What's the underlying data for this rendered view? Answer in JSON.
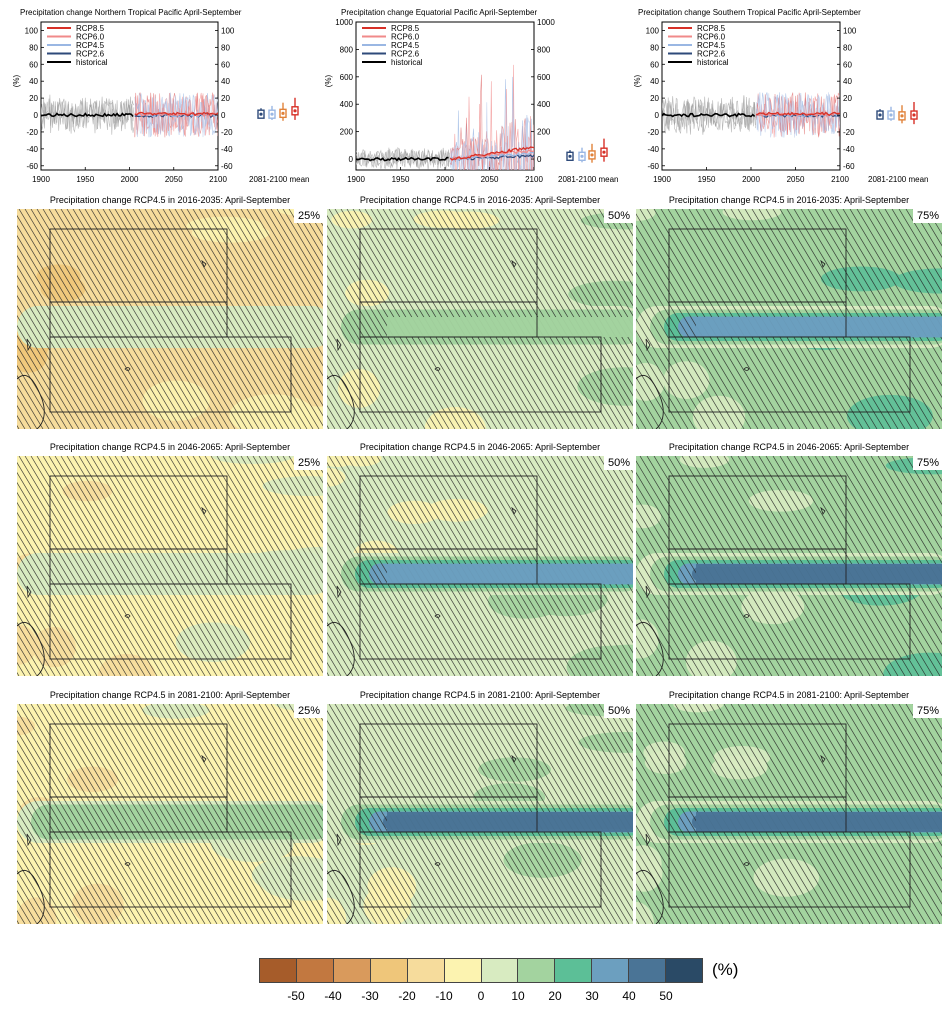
{
  "legend_labels": [
    "RCP8.5",
    "RCP6.0",
    "RCP4.5",
    "RCP2.6",
    "historical"
  ],
  "legend_colors": [
    "#d73027",
    "#f08a8a",
    "#9ab7e3",
    "#2e4a7a",
    "#000000"
  ],
  "timeseries_panels": [
    {
      "title": "Precipitation change Northern Tropical Pacific April-September",
      "y_unit": "(%)",
      "y_ticks": [
        "100",
        "80",
        "60",
        "40",
        "20",
        "0",
        "-20",
        "-40",
        "-60"
      ],
      "x_ticks": [
        "1900",
        "1950",
        "2000",
        "2050",
        "2100"
      ],
      "mean_label": "2081-2100 mean"
    },
    {
      "title": "Precipitation change Equatorial Pacific April-September",
      "y_unit": "(%)",
      "y_ticks": [
        "1000",
        "800",
        "600",
        "400",
        "200",
        "0"
      ],
      "x_ticks": [
        "1900",
        "1950",
        "2000",
        "2050",
        "2100"
      ],
      "mean_label": "2081-2100 mean"
    },
    {
      "title": "Precipitation change Southern Tropical Pacific April-September",
      "y_unit": "(%)",
      "y_ticks": [
        "100",
        "80",
        "60",
        "40",
        "20",
        "0",
        "-20",
        "-40",
        "-60"
      ],
      "x_ticks": [
        "1900",
        "1950",
        "2000",
        "2050",
        "2100"
      ],
      "mean_label": "2081-2100 mean"
    }
  ],
  "map_panels": [
    {
      "title": "Precipitation change RCP4.5 in 2016-2035: April-September",
      "percentile": "25%"
    },
    {
      "title": "Precipitation change RCP4.5 in 2016-2035: April-September",
      "percentile": "50%"
    },
    {
      "title": "Precipitation change RCP4.5 in 2016-2035: April-September",
      "percentile": "75%"
    },
    {
      "title": "Precipitation change RCP4.5 in 2046-2065: April-September",
      "percentile": "25%"
    },
    {
      "title": "Precipitation change RCP4.5 in 2046-2065: April-September",
      "percentile": "50%"
    },
    {
      "title": "Precipitation change RCP4.5 in 2046-2065: April-September",
      "percentile": "75%"
    },
    {
      "title": "Precipitation change RCP4.5 in 2081-2100: April-September",
      "percentile": "25%"
    },
    {
      "title": "Precipitation change RCP4.5 in 2081-2100: April-September",
      "percentile": "50%"
    },
    {
      "title": "Precipitation change RCP4.5 in 2081-2100: April-September",
      "percentile": "75%"
    }
  ],
  "colorbar": {
    "unit": "(%)",
    "colors": [
      "#a65c2a",
      "#c27840",
      "#d99a5c",
      "#efc67a",
      "#f6dc9c",
      "#fcf3b0",
      "#d8ebc1",
      "#a3d39f",
      "#5cbf97",
      "#6c9fbf",
      "#4a7496",
      "#2a4a66"
    ],
    "tick_labels": [
      "-50",
      "-40",
      "-30",
      "-20",
      "-10",
      "0",
      "10",
      "20",
      "30",
      "40",
      "50"
    ]
  },
  "chart_data": [
    {
      "type": "line",
      "title": "Precipitation change Northern Tropical Pacific April-September",
      "ylabel": "(%)",
      "x_range": [
        1900,
        2100
      ],
      "ylim": [
        -65,
        110
      ],
      "series": [
        {
          "name": "historical"
        },
        {
          "name": "RCP2.6"
        },
        {
          "name": "RCP4.5"
        },
        {
          "name": "RCP6.0"
        },
        {
          "name": "RCP8.5"
        }
      ],
      "mean_2081_2100": {
        "RCP2.6": 1,
        "RCP4.5": 1,
        "RCP6.0": 2,
        "RCP8.5": 5
      }
    },
    {
      "type": "line",
      "title": "Precipitation change Equatorial Pacific April-September",
      "ylabel": "(%)",
      "x_range": [
        1900,
        2100
      ],
      "ylim": [
        -80,
        1000
      ],
      "series": [
        {
          "name": "historical"
        },
        {
          "name": "RCP2.6"
        },
        {
          "name": "RCP4.5"
        },
        {
          "name": "RCP6.0"
        },
        {
          "name": "RCP8.5"
        }
      ],
      "mean_2081_2100": {
        "RCP2.6": 20,
        "RCP4.5": 20,
        "RCP6.0": 30,
        "RCP8.5": 50
      }
    },
    {
      "type": "line",
      "title": "Precipitation change Southern Tropical Pacific April-September",
      "ylabel": "(%)",
      "x_range": [
        1900,
        2100
      ],
      "ylim": [
        -65,
        110
      ],
      "series": [
        {
          "name": "historical"
        },
        {
          "name": "RCP2.6"
        },
        {
          "name": "RCP4.5"
        },
        {
          "name": "RCP6.0"
        },
        {
          "name": "RCP8.5"
        }
      ],
      "mean_2081_2100": {
        "RCP2.6": 0,
        "RCP4.5": 0,
        "RCP6.0": -1,
        "RCP8.5": 0
      }
    },
    {
      "type": "heatmap",
      "colorbar_ticks": [
        -50,
        -40,
        -30,
        -20,
        -10,
        0,
        10,
        20,
        30,
        40,
        50
      ],
      "panels": [
        {
          "period": "2016-2035",
          "percentile": "25%",
          "equatorial_band_level": 10
        },
        {
          "period": "2016-2035",
          "percentile": "50%",
          "equatorial_band_level": 20
        },
        {
          "period": "2016-2035",
          "percentile": "75%",
          "equatorial_band_level": 40
        },
        {
          "period": "2046-2065",
          "percentile": "25%",
          "equatorial_band_level": 10
        },
        {
          "period": "2046-2065",
          "percentile": "50%",
          "equatorial_band_level": 40
        },
        {
          "period": "2046-2065",
          "percentile": "75%",
          "equatorial_band_level": 50
        },
        {
          "period": "2081-2100",
          "percentile": "25%",
          "equatorial_band_level": 20
        },
        {
          "period": "2081-2100",
          "percentile": "50%",
          "equatorial_band_level": 50
        },
        {
          "period": "2081-2100",
          "percentile": "75%",
          "equatorial_band_level": 50
        }
      ]
    }
  ]
}
